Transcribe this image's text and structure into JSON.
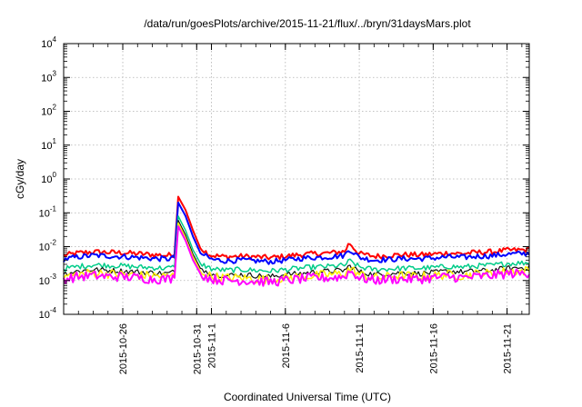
{
  "chart_data": {
    "type": "line",
    "title": "/data/run/goesPlots/archive/2015-11-21/flux/../bryn/31daysMars.plot",
    "xlabel": "Coordinated Universal Time (UTC)",
    "ylabel": "cGy/day",
    "yscale": "log",
    "ylim": [
      0.0001,
      10000
    ],
    "xlim": [
      "2015-10-22T00:00",
      "2015-11-22T12:00"
    ],
    "grid": true,
    "y_ticks": [
      {
        "base": "10",
        "exp": "-4",
        "value": 0.0001
      },
      {
        "base": "10",
        "exp": "-3",
        "value": 0.001
      },
      {
        "base": "10",
        "exp": "-2",
        "value": 0.01
      },
      {
        "base": "10",
        "exp": "-1",
        "value": 0.1
      },
      {
        "base": "10",
        "exp": "0",
        "value": 1
      },
      {
        "base": "10",
        "exp": "1",
        "value": 10
      },
      {
        "base": "10",
        "exp": "2",
        "value": 100
      },
      {
        "base": "10",
        "exp": "3",
        "value": 1000
      },
      {
        "base": "10",
        "exp": "4",
        "value": 10000
      }
    ],
    "x_ticks": [
      "2015-10-26",
      "2015-10-31",
      "2015-11-1",
      "2015-11-6",
      "2015-11-11",
      "2015-11-16",
      "2015-11-21"
    ],
    "x_tick_dates": [
      "2015-10-26",
      "2015-10-31",
      "2015-11-01",
      "2015-11-06",
      "2015-11-11",
      "2015-11-16",
      "2015-11-21"
    ],
    "series": [
      {
        "color": "#ff0000",
        "width": 2,
        "levels": [
          [
            "2015-10-22",
            0.0055
          ],
          [
            "2015-10-23",
            0.0065
          ],
          [
            "2015-10-24",
            0.007
          ],
          [
            "2015-10-25",
            0.0068
          ],
          [
            "2015-10-26",
            0.0066
          ],
          [
            "2015-10-27",
            0.0062
          ],
          [
            "2015-10-28",
            0.0058
          ],
          [
            "2015-10-29",
            0.0055
          ],
          [
            "2015-10-29T12:00",
            0.006
          ],
          [
            "2015-10-29T18:00",
            0.3
          ],
          [
            "2015-10-30T06:00",
            0.12
          ],
          [
            "2015-10-30T18:00",
            0.03
          ],
          [
            "2015-10-31T06:00",
            0.009
          ],
          [
            "2015-11-01",
            0.0055
          ],
          [
            "2015-11-02",
            0.005
          ],
          [
            "2015-11-03",
            0.0052
          ],
          [
            "2015-11-04",
            0.005
          ],
          [
            "2015-11-05",
            0.0047
          ],
          [
            "2015-11-06",
            0.0052
          ],
          [
            "2015-11-07",
            0.0058
          ],
          [
            "2015-11-08",
            0.0062
          ],
          [
            "2015-11-09",
            0.0065
          ],
          [
            "2015-11-10",
            0.0072
          ],
          [
            "2015-11-10T08:00",
            0.013
          ],
          [
            "2015-11-10T18:00",
            0.008
          ],
          [
            "2015-11-11",
            0.0062
          ],
          [
            "2015-11-12",
            0.0052
          ],
          [
            "2015-11-13",
            0.0055
          ],
          [
            "2015-11-14",
            0.0058
          ],
          [
            "2015-11-15",
            0.0057
          ],
          [
            "2015-11-16",
            0.006
          ],
          [
            "2015-11-17",
            0.0065
          ],
          [
            "2015-11-18",
            0.0062
          ],
          [
            "2015-11-19",
            0.0068
          ],
          [
            "2015-11-20",
            0.007
          ],
          [
            "2015-11-21",
            0.0078
          ],
          [
            "2015-11-22",
            0.008
          ],
          [
            "2015-11-22T12:00",
            0.0082
          ]
        ]
      },
      {
        "color": "#0000ff",
        "width": 2,
        "levels": [
          [
            "2015-10-22",
            0.0042
          ],
          [
            "2015-10-23",
            0.005
          ],
          [
            "2015-10-24",
            0.0055
          ],
          [
            "2015-10-25",
            0.0053
          ],
          [
            "2015-10-26",
            0.0051
          ],
          [
            "2015-10-27",
            0.0048
          ],
          [
            "2015-10-28",
            0.0045
          ],
          [
            "2015-10-29",
            0.0043
          ],
          [
            "2015-10-29T12:00",
            0.0047
          ],
          [
            "2015-10-29T18:00",
            0.2
          ],
          [
            "2015-10-30T06:00",
            0.08
          ],
          [
            "2015-10-30T18:00",
            0.02
          ],
          [
            "2015-10-31T06:00",
            0.0065
          ],
          [
            "2015-11-01",
            0.0042
          ],
          [
            "2015-11-02",
            0.0038
          ],
          [
            "2015-11-03",
            0.004
          ],
          [
            "2015-11-04",
            0.0038
          ],
          [
            "2015-11-05",
            0.0036
          ],
          [
            "2015-11-06",
            0.004
          ],
          [
            "2015-11-07",
            0.0045
          ],
          [
            "2015-11-08",
            0.0048
          ],
          [
            "2015-11-09",
            0.005
          ],
          [
            "2015-11-10",
            0.0055
          ],
          [
            "2015-11-10T08:00",
            0.0085
          ],
          [
            "2015-11-10T18:00",
            0.006
          ],
          [
            "2015-11-11",
            0.0048
          ],
          [
            "2015-11-12",
            0.004
          ],
          [
            "2015-11-13",
            0.0042
          ],
          [
            "2015-11-14",
            0.0044
          ],
          [
            "2015-11-15",
            0.0044
          ],
          [
            "2015-11-16",
            0.0046
          ],
          [
            "2015-11-17",
            0.005
          ],
          [
            "2015-11-18",
            0.0048
          ],
          [
            "2015-11-19",
            0.0052
          ],
          [
            "2015-11-20",
            0.0054
          ],
          [
            "2015-11-21",
            0.006
          ],
          [
            "2015-11-22",
            0.0062
          ],
          [
            "2015-11-22T12:00",
            0.0063
          ]
        ]
      },
      {
        "color": "#00cc88",
        "width": 1.5,
        "levels": [
          [
            "2015-10-22",
            0.0022
          ],
          [
            "2015-10-23",
            0.0026
          ],
          [
            "2015-10-24",
            0.0029
          ],
          [
            "2015-10-25",
            0.0028
          ],
          [
            "2015-10-26",
            0.0027
          ],
          [
            "2015-10-27",
            0.0025
          ],
          [
            "2015-10-28",
            0.0024
          ],
          [
            "2015-10-29",
            0.0023
          ],
          [
            "2015-10-29T12:00",
            0.0025
          ],
          [
            "2015-10-29T18:00",
            0.08
          ],
          [
            "2015-10-30T06:00",
            0.03
          ],
          [
            "2015-10-30T18:00",
            0.008
          ],
          [
            "2015-10-31T06:00",
            0.0032
          ],
          [
            "2015-11-01",
            0.0022
          ],
          [
            "2015-11-02",
            0.002
          ],
          [
            "2015-11-03",
            0.0021
          ],
          [
            "2015-11-04",
            0.002
          ],
          [
            "2015-11-05",
            0.0019
          ],
          [
            "2015-11-06",
            0.0021
          ],
          [
            "2015-11-07",
            0.0023
          ],
          [
            "2015-11-08",
            0.0025
          ],
          [
            "2015-11-09",
            0.0026
          ],
          [
            "2015-11-10",
            0.0028
          ],
          [
            "2015-11-10T08:00",
            0.0038
          ],
          [
            "2015-11-10T18:00",
            0.003
          ],
          [
            "2015-11-11",
            0.0025
          ],
          [
            "2015-11-12",
            0.0021
          ],
          [
            "2015-11-13",
            0.0022
          ],
          [
            "2015-11-14",
            0.0023
          ],
          [
            "2015-11-15",
            0.0023
          ],
          [
            "2015-11-16",
            0.0024
          ],
          [
            "2015-11-17",
            0.0026
          ],
          [
            "2015-11-18",
            0.0025
          ],
          [
            "2015-11-19",
            0.0027
          ],
          [
            "2015-11-20",
            0.0028
          ],
          [
            "2015-11-21",
            0.0032
          ],
          [
            "2015-11-22",
            0.0033
          ],
          [
            "2015-11-22T12:00",
            0.0034
          ]
        ]
      },
      {
        "color": "#111111",
        "width": 1.2,
        "levels": [
          [
            "2015-10-22",
            0.0016
          ],
          [
            "2015-10-23",
            0.0019
          ],
          [
            "2015-10-24",
            0.0021
          ],
          [
            "2015-10-25",
            0.002
          ],
          [
            "2015-10-26",
            0.0019
          ],
          [
            "2015-10-27",
            0.0018
          ],
          [
            "2015-10-28",
            0.0017
          ],
          [
            "2015-10-29",
            0.0016
          ],
          [
            "2015-10-29T12:00",
            0.0018
          ],
          [
            "2015-10-29T18:00",
            0.06
          ],
          [
            "2015-10-30T06:00",
            0.022
          ],
          [
            "2015-10-30T18:00",
            0.006
          ],
          [
            "2015-10-31T06:00",
            0.0023
          ],
          [
            "2015-11-01",
            0.0016
          ],
          [
            "2015-11-02",
            0.0014
          ],
          [
            "2015-11-03",
            0.0015
          ],
          [
            "2015-11-04",
            0.0014
          ],
          [
            "2015-11-05",
            0.0013
          ],
          [
            "2015-11-06",
            0.0015
          ],
          [
            "2015-11-07",
            0.0016
          ],
          [
            "2015-11-08",
            0.0018
          ],
          [
            "2015-11-09",
            0.0019
          ],
          [
            "2015-11-10",
            0.002
          ],
          [
            "2015-11-10T08:00",
            0.0027
          ],
          [
            "2015-11-10T18:00",
            0.0022
          ],
          [
            "2015-11-11",
            0.0018
          ],
          [
            "2015-11-12",
            0.0015
          ],
          [
            "2015-11-13",
            0.0016
          ],
          [
            "2015-11-14",
            0.0017
          ],
          [
            "2015-11-15",
            0.0016
          ],
          [
            "2015-11-16",
            0.0017
          ],
          [
            "2015-11-17",
            0.0019
          ],
          [
            "2015-11-18",
            0.0018
          ],
          [
            "2015-11-19",
            0.0019
          ],
          [
            "2015-11-20",
            0.002
          ],
          [
            "2015-11-21",
            0.0023
          ],
          [
            "2015-11-22",
            0.0024
          ],
          [
            "2015-11-22T12:00",
            0.0024
          ]
        ]
      },
      {
        "color": "#ffee00",
        "width": 1.5,
        "levels": [
          [
            "2015-10-22",
            0.0013
          ],
          [
            "2015-10-23",
            0.0015
          ],
          [
            "2015-10-24",
            0.0017
          ],
          [
            "2015-10-25",
            0.0016
          ],
          [
            "2015-10-26",
            0.0015
          ],
          [
            "2015-10-27",
            0.0014
          ],
          [
            "2015-10-28",
            0.0014
          ],
          [
            "2015-10-29",
            0.0013
          ],
          [
            "2015-10-29T12:00",
            0.0014
          ],
          [
            "2015-10-29T18:00",
            0.05
          ],
          [
            "2015-10-30T06:00",
            0.018
          ],
          [
            "2015-10-30T18:00",
            0.005
          ],
          [
            "2015-10-31T06:00",
            0.0019
          ],
          [
            "2015-11-01",
            0.0013
          ],
          [
            "2015-11-02",
            0.0012
          ],
          [
            "2015-11-03",
            0.0012
          ],
          [
            "2015-11-04",
            0.0011
          ],
          [
            "2015-11-05",
            0.0011
          ],
          [
            "2015-11-06",
            0.0012
          ],
          [
            "2015-11-07",
            0.0013
          ],
          [
            "2015-11-08",
            0.0014
          ],
          [
            "2015-11-09",
            0.0015
          ],
          [
            "2015-11-10",
            0.0016
          ],
          [
            "2015-11-10T08:00",
            0.0022
          ],
          [
            "2015-11-10T18:00",
            0.0018
          ],
          [
            "2015-11-11",
            0.0015
          ],
          [
            "2015-11-12",
            0.0012
          ],
          [
            "2015-11-13",
            0.0013
          ],
          [
            "2015-11-14",
            0.0014
          ],
          [
            "2015-11-15",
            0.0013
          ],
          [
            "2015-11-16",
            0.0014
          ],
          [
            "2015-11-17",
            0.0015
          ],
          [
            "2015-11-18",
            0.0014
          ],
          [
            "2015-11-19",
            0.0016
          ],
          [
            "2015-11-20",
            0.0016
          ],
          [
            "2015-11-21",
            0.0019
          ],
          [
            "2015-11-22",
            0.0019
          ],
          [
            "2015-11-22T12:00",
            0.002
          ]
        ]
      },
      {
        "color": "#ff00ff",
        "width": 2,
        "levels": [
          [
            "2015-10-22",
            0.0011
          ],
          [
            "2015-10-23",
            0.0013
          ],
          [
            "2015-10-24",
            0.0014
          ],
          [
            "2015-10-25",
            0.0013
          ],
          [
            "2015-10-26",
            0.0013
          ],
          [
            "2015-10-27",
            0.0012
          ],
          [
            "2015-10-28",
            0.0011
          ],
          [
            "2015-10-29",
            0.0011
          ],
          [
            "2015-10-29T12:00",
            0.0012
          ],
          [
            "2015-10-29T18:00",
            0.04
          ],
          [
            "2015-10-30T06:00",
            0.015
          ],
          [
            "2015-10-30T18:00",
            0.004
          ],
          [
            "2015-10-31T06:00",
            0.0016
          ],
          [
            "2015-11-01",
            0.0011
          ],
          [
            "2015-11-02",
            0.001
          ],
          [
            "2015-11-03",
            0.001
          ],
          [
            "2015-11-04",
            0.00095
          ],
          [
            "2015-11-05",
            0.0009
          ],
          [
            "2015-11-06",
            0.001
          ],
          [
            "2015-11-07",
            0.0011
          ],
          [
            "2015-11-08",
            0.0012
          ],
          [
            "2015-11-09",
            0.0012
          ],
          [
            "2015-11-10",
            0.0013
          ],
          [
            "2015-11-10T08:00",
            0.0019
          ],
          [
            "2015-11-10T18:00",
            0.0015
          ],
          [
            "2015-11-11",
            0.0012
          ],
          [
            "2015-11-12",
            0.001
          ],
          [
            "2015-11-13",
            0.0011
          ],
          [
            "2015-11-14",
            0.0011
          ],
          [
            "2015-11-15",
            0.0011
          ],
          [
            "2015-11-16",
            0.0012
          ],
          [
            "2015-11-17",
            0.0013
          ],
          [
            "2015-11-18",
            0.0012
          ],
          [
            "2015-11-19",
            0.0013
          ],
          [
            "2015-11-20",
            0.0014
          ],
          [
            "2015-11-21",
            0.0016
          ],
          [
            "2015-11-22",
            0.0016
          ],
          [
            "2015-11-22T12:00",
            0.0017
          ]
        ]
      }
    ]
  }
}
